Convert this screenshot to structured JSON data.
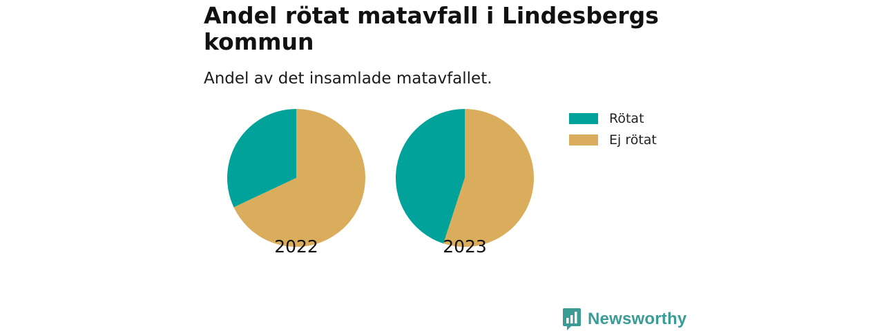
{
  "header": {
    "title": "Andel rötat matavfall i Lindesbergs kommun",
    "subtitle": "Andel av det insamlade matavfallet."
  },
  "colors": {
    "rotat": "#00a29a",
    "ej_rotat": "#d9ad5b",
    "brand": "#3a9c95"
  },
  "legend": {
    "items": [
      {
        "label": "Rötat",
        "color": "#00a29a"
      },
      {
        "label": "Ej rötat",
        "color": "#d9ad5b"
      }
    ]
  },
  "chart_data": {
    "type": "pie",
    "title": "Andel rötat matavfall i Lindesbergs kommun",
    "subtitle": "Andel av det insamlade matavfallet.",
    "categories": [
      "Rötat",
      "Ej rötat"
    ],
    "legend_position": "top-right",
    "pies": [
      {
        "name": "2022",
        "values": [
          32,
          68
        ]
      },
      {
        "name": "2023",
        "values": [
          45,
          55
        ]
      }
    ]
  },
  "brand": {
    "name": "Newsworthy",
    "icon": "newsworthy-logo-icon"
  }
}
